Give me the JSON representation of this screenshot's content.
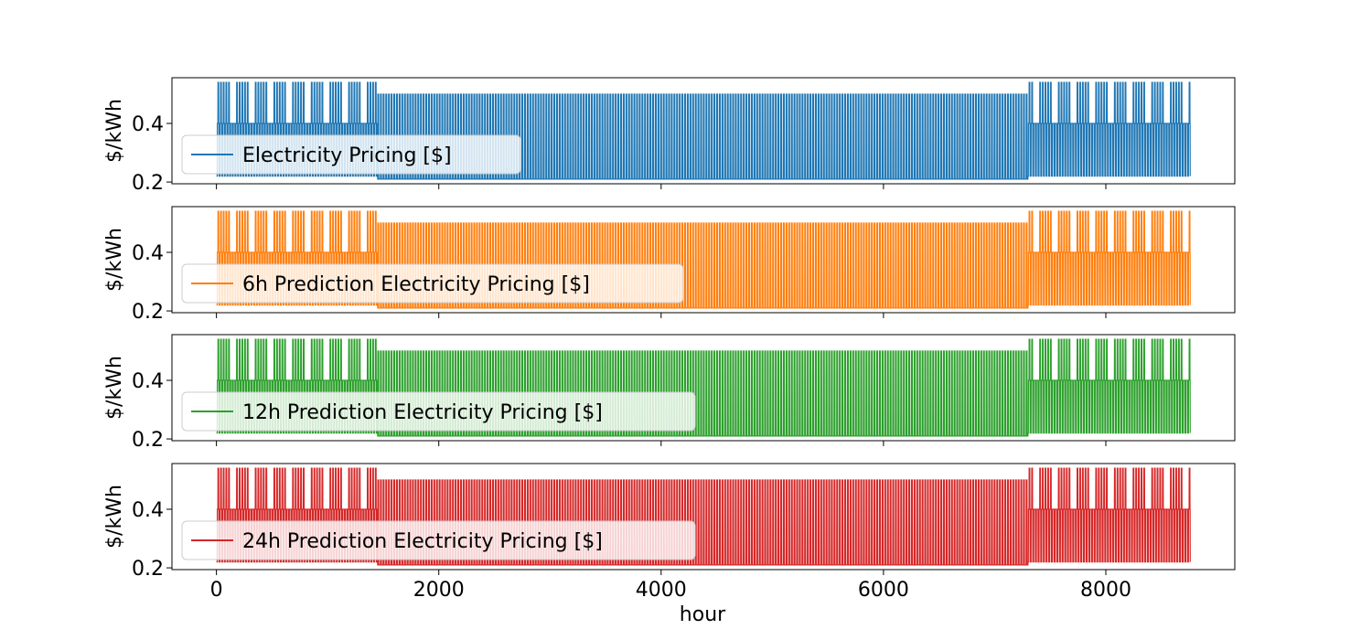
{
  "chart_data": {
    "type": "line",
    "xlabel": "hour",
    "xlim": [
      -400,
      9160
    ],
    "xticks": [
      0,
      2000,
      4000,
      6000,
      8000
    ],
    "shared_x": true,
    "grid": false,
    "subplots": [
      {
        "ylabel": "$/kWh",
        "ylim": [
          0.194,
          0.556
        ],
        "yticks": [
          0.2,
          0.4
        ],
        "legend_placement": "lower-left",
        "series": [
          {
            "name": "Electricity Pricing [$]",
            "color": "#1f77b4"
          }
        ]
      },
      {
        "ylabel": "$/kWh",
        "ylim": [
          0.194,
          0.556
        ],
        "yticks": [
          0.2,
          0.4
        ],
        "legend_placement": "lower-left",
        "series": [
          {
            "name": "6h Prediction Electricity Pricing [$]",
            "color": "#ff7f0e"
          }
        ]
      },
      {
        "ylabel": "$/kWh",
        "ylim": [
          0.194,
          0.556
        ],
        "yticks": [
          0.2,
          0.4
        ],
        "legend_placement": "lower-left",
        "series": [
          {
            "name": "12h Prediction Electricity Pricing [$]",
            "color": "#2ca02c"
          }
        ]
      },
      {
        "ylabel": "$/kWh",
        "ylim": [
          0.194,
          0.556
        ],
        "yticks": [
          0.2,
          0.4
        ],
        "legend_placement": "lower-left",
        "series": [
          {
            "name": "24h Prediction Electricity Pricing [$]",
            "color": "#d62728"
          }
        ]
      }
    ],
    "pricing_regimes": [
      {
        "x_range": [
          0,
          1450
        ],
        "peak": 0.54,
        "shoulder": 0.4,
        "off_peak": 0.22,
        "pattern": "weekday-peak / weekend-shoulder"
      },
      {
        "x_range": [
          1450,
          7300
        ],
        "peak": 0.5,
        "off_peak": 0.21,
        "pattern": "daily alternation"
      },
      {
        "x_range": [
          7300,
          8760
        ],
        "peak": 0.54,
        "shoulder": 0.4,
        "off_peak": 0.22,
        "pattern": "weekday-peak / weekend-shoulder"
      }
    ]
  }
}
